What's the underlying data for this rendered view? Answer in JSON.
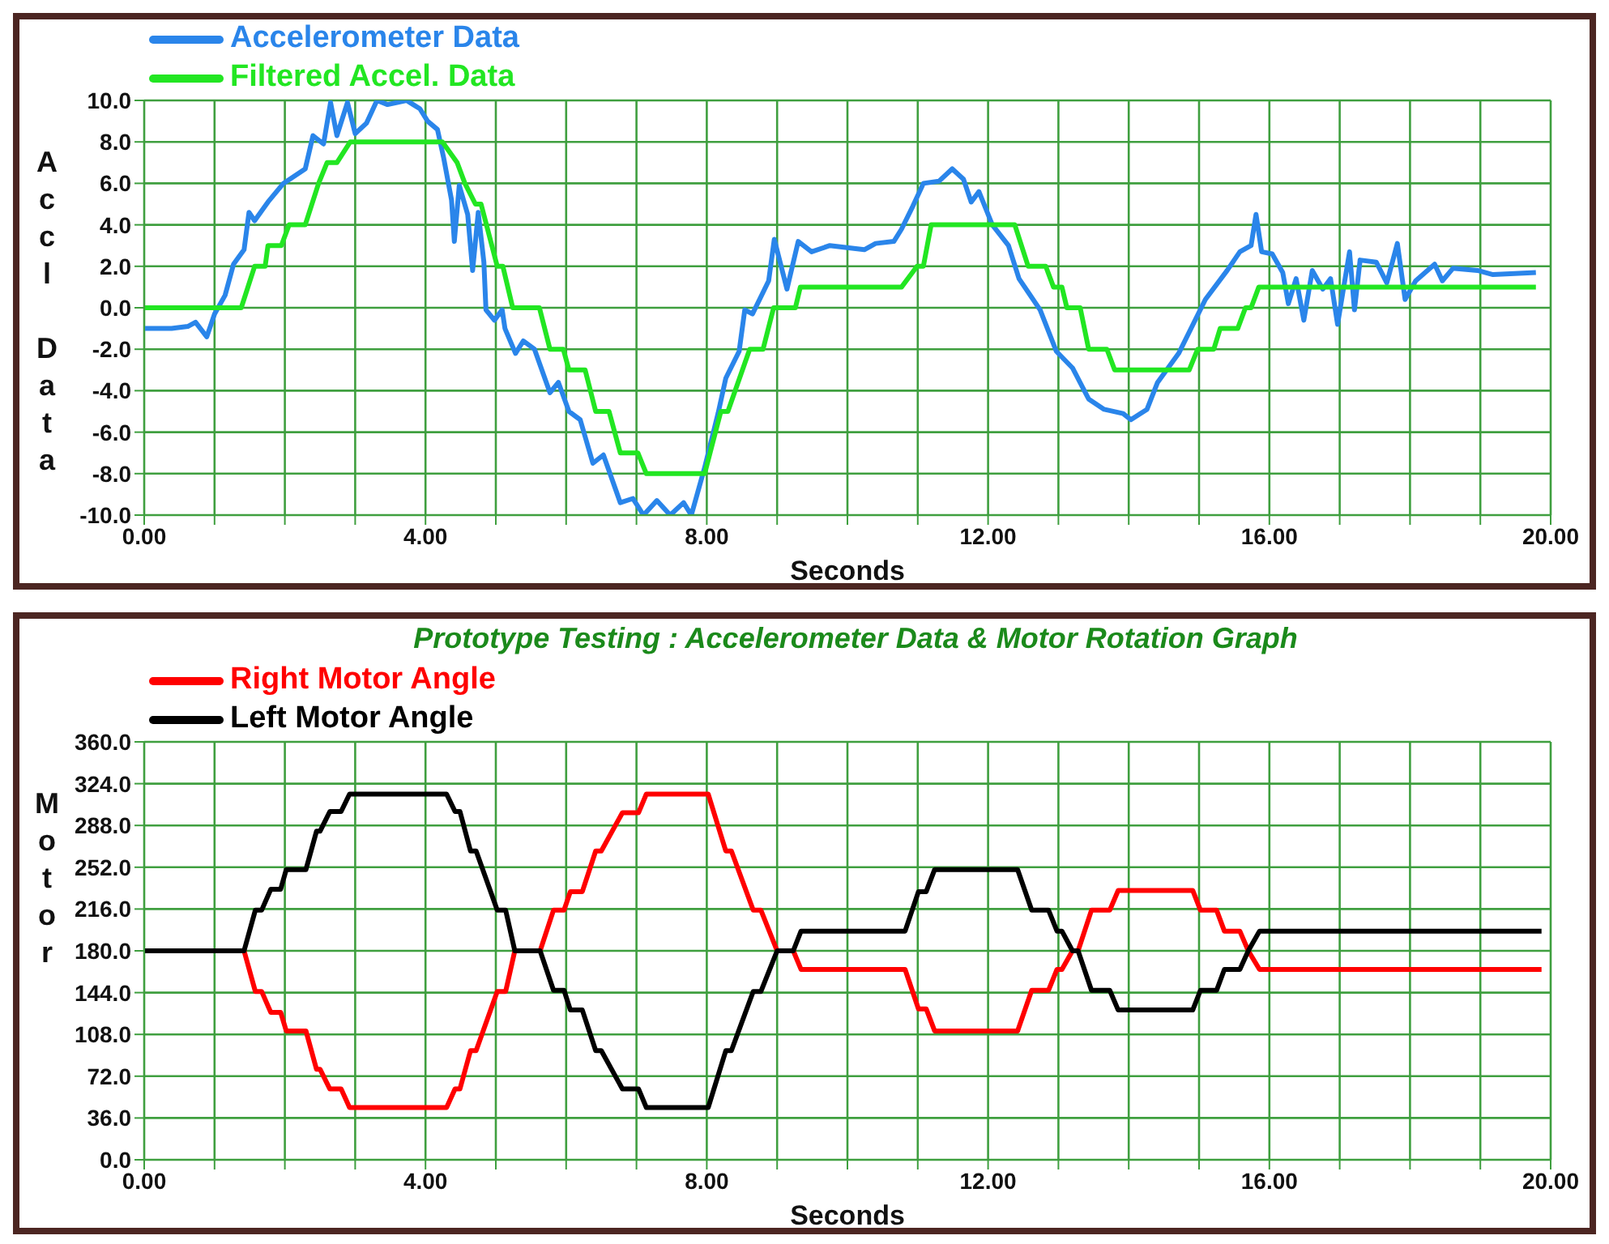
{
  "chart_data": [
    {
      "type": "line",
      "xlabel": "Seconds",
      "ylabel": "Accl Data",
      "legend": "top left",
      "grid": true,
      "xlim": [
        0,
        20
      ],
      "ylim": [
        -10,
        10
      ],
      "xticks": [
        {
          "value": 0,
          "label": "0.00"
        },
        {
          "value": 1,
          "label": null
        },
        {
          "value": 2,
          "label": null
        },
        {
          "value": 3,
          "label": null
        },
        {
          "value": 4,
          "label": "4.00"
        },
        {
          "value": 5,
          "label": null
        },
        {
          "value": 6,
          "label": null
        },
        {
          "value": 7,
          "label": null
        },
        {
          "value": 8,
          "label": "8.00"
        },
        {
          "value": 9,
          "label": null
        },
        {
          "value": 10,
          "label": null
        },
        {
          "value": 11,
          "label": null
        },
        {
          "value": 12,
          "label": "12.00"
        },
        {
          "value": 13,
          "label": null
        },
        {
          "value": 14,
          "label": null
        },
        {
          "value": 15,
          "label": null
        },
        {
          "value": 16,
          "label": "16.00"
        },
        {
          "value": 17,
          "label": null
        },
        {
          "value": 18,
          "label": null
        },
        {
          "value": 19,
          "label": null
        },
        {
          "value": 20,
          "label": "20.00"
        }
      ],
      "yticks": [
        {
          "value": -10,
          "label": "-10.0"
        },
        {
          "value": -8,
          "label": "-8.0"
        },
        {
          "value": -6,
          "label": "-6.0"
        },
        {
          "value": -4,
          "label": "-4.0"
        },
        {
          "value": -2,
          "label": "-2.0"
        },
        {
          "value": 0,
          "label": "0.0"
        },
        {
          "value": 2,
          "label": "2.0"
        },
        {
          "value": 4,
          "label": "4.0"
        },
        {
          "value": 6,
          "label": "6.0"
        },
        {
          "value": 8,
          "label": "8.0"
        },
        {
          "value": 10,
          "label": "10.0"
        }
      ],
      "series": [
        {
          "name": "Accelerometer Data",
          "color": "#2a85ea",
          "x": [
            0,
            0.39,
            0.62,
            0.73,
            0.89,
            1.0,
            1.15,
            1.27,
            1.42,
            1.49,
            1.57,
            1.76,
            1.98,
            2.29,
            2.4,
            2.55,
            2.65,
            2.74,
            2.89,
            3.0,
            3.16,
            3.31,
            3.46,
            3.73,
            3.92,
            4.03,
            4.17,
            4.26,
            4.37,
            4.41,
            4.48,
            4.6,
            4.67,
            4.75,
            4.83,
            4.86,
            4.98,
            5.09,
            5.13,
            5.28,
            5.39,
            5.55,
            5.77,
            5.89,
            6.04,
            6.2,
            6.38,
            6.53,
            6.77,
            6.95,
            7.1,
            7.29,
            7.48,
            7.67,
            7.78,
            7.97,
            8.16,
            8.27,
            8.46,
            8.54,
            8.65,
            8.88,
            8.96,
            9.14,
            9.3,
            9.49,
            9.75,
            10.24,
            10.4,
            10.66,
            10.77,
            10.93,
            11.08,
            11.3,
            11.49,
            11.65,
            11.76,
            11.87,
            12.06,
            12.29,
            12.44,
            12.74,
            12.97,
            13.2,
            13.43,
            13.65,
            13.92,
            14.03,
            14.26,
            14.41,
            14.71,
            15.09,
            15.4,
            15.58,
            15.74,
            15.81,
            15.89,
            16.04,
            16.19,
            16.27,
            16.38,
            16.49,
            16.61,
            16.76,
            16.87,
            16.97,
            17.14,
            17.21,
            17.29,
            17.52,
            17.67,
            17.82,
            17.93,
            18.08,
            18.35,
            18.46,
            18.61,
            18.96,
            19.18,
            19.79
          ],
          "values": [
            -1.0,
            -1.0,
            -0.9,
            -0.7,
            -1.4,
            -0.3,
            0.6,
            2.1,
            2.8,
            4.6,
            4.2,
            5.1,
            6.0,
            6.7,
            8.3,
            7.9,
            9.9,
            8.3,
            9.9,
            8.4,
            8.9,
            10.0,
            9.8,
            10.0,
            9.6,
            9.0,
            8.6,
            7.2,
            5.2,
            3.2,
            5.9,
            4.5,
            1.8,
            4.6,
            2.2,
            -0.1,
            -0.6,
            -0.1,
            -1.0,
            -2.2,
            -1.6,
            -2.0,
            -4.1,
            -3.6,
            -5.0,
            -5.4,
            -7.5,
            -7.1,
            -9.4,
            -9.2,
            -10.0,
            -9.3,
            -10.0,
            -9.4,
            -10.0,
            -7.7,
            -5.1,
            -3.4,
            -2.1,
            -0.1,
            -0.3,
            1.3,
            3.3,
            0.9,
            3.2,
            2.7,
            3.0,
            2.8,
            3.1,
            3.2,
            3.8,
            4.9,
            6.0,
            6.1,
            6.7,
            6.2,
            5.1,
            5.6,
            4.0,
            3.0,
            1.4,
            -0.1,
            -2.1,
            -2.9,
            -4.4,
            -4.9,
            -5.1,
            -5.4,
            -4.9,
            -3.6,
            -2.2,
            0.4,
            1.8,
            2.7,
            3.0,
            4.5,
            2.7,
            2.6,
            1.7,
            0.2,
            1.4,
            -0.6,
            1.8,
            0.9,
            1.4,
            -0.8,
            2.7,
            -0.1,
            2.3,
            2.2,
            1.2,
            3.1,
            0.4,
            1.3,
            2.1,
            1.3,
            1.9,
            1.8,
            1.6,
            1.7
          ]
        },
        {
          "name": "Filtered Accel. Data",
          "color": "#22e622",
          "x": [
            0,
            1.38,
            1.57,
            1.72,
            1.76,
            1.95,
            2.06,
            2.29,
            2.48,
            2.6,
            2.74,
            2.93,
            4.24,
            4.45,
            4.56,
            4.71,
            4.79,
            5.02,
            5.1,
            5.24,
            5.62,
            5.77,
            5.96,
            6.04,
            6.27,
            6.42,
            6.61,
            6.77,
            7.02,
            7.14,
            7.97,
            8.2,
            8.3,
            8.61,
            8.8,
            8.95,
            9.26,
            9.33,
            10.77,
            10.99,
            11.08,
            11.19,
            12.38,
            12.57,
            12.82,
            12.93,
            13.05,
            13.12,
            13.31,
            13.43,
            13.69,
            13.8,
            14.86,
            14.98,
            15.21,
            15.3,
            15.55,
            15.66,
            15.74,
            15.85,
            19.79
          ],
          "values": [
            0,
            0,
            2,
            2,
            3,
            3,
            4,
            4,
            6,
            7,
            7,
            8,
            8,
            7,
            6,
            5,
            5,
            2,
            2,
            0,
            0,
            -2,
            -2,
            -3,
            -3,
            -5,
            -5,
            -7,
            -7,
            -8,
            -8,
            -5,
            -5,
            -2,
            -2,
            0,
            0,
            1,
            1,
            2,
            2,
            4,
            4,
            2,
            2,
            1,
            1,
            0,
            0,
            -2,
            -2,
            -3,
            -3,
            -2,
            -2,
            -1,
            -1,
            0,
            0,
            1,
            1
          ]
        }
      ]
    },
    {
      "type": "line",
      "title": "Prototype Testing : Accelerometer Data & Motor Rotation Graph",
      "xlabel": "Seconds",
      "ylabel": "Motor",
      "legend": "top left",
      "grid": true,
      "xlim": [
        0,
        20
      ],
      "ylim": [
        0,
        360
      ],
      "xticks": [
        {
          "value": 0,
          "label": "0.00"
        },
        {
          "value": 1,
          "label": null
        },
        {
          "value": 2,
          "label": null
        },
        {
          "value": 3,
          "label": null
        },
        {
          "value": 4,
          "label": "4.00"
        },
        {
          "value": 5,
          "label": null
        },
        {
          "value": 6,
          "label": null
        },
        {
          "value": 7,
          "label": null
        },
        {
          "value": 8,
          "label": "8.00"
        },
        {
          "value": 9,
          "label": null
        },
        {
          "value": 10,
          "label": null
        },
        {
          "value": 11,
          "label": null
        },
        {
          "value": 12,
          "label": "12.00"
        },
        {
          "value": 13,
          "label": null
        },
        {
          "value": 14,
          "label": null
        },
        {
          "value": 15,
          "label": null
        },
        {
          "value": 16,
          "label": "16.00"
        },
        {
          "value": 17,
          "label": null
        },
        {
          "value": 18,
          "label": null
        },
        {
          "value": 19,
          "label": null
        },
        {
          "value": 20,
          "label": "20.00"
        }
      ],
      "yticks": [
        {
          "value": 0,
          "label": "0.0"
        },
        {
          "value": 36,
          "label": "36.0"
        },
        {
          "value": 72,
          "label": "72.0"
        },
        {
          "value": 108,
          "label": "108.0"
        },
        {
          "value": 144,
          "label": "144.0"
        },
        {
          "value": 180,
          "label": "180.0"
        },
        {
          "value": 216,
          "label": "216.0"
        },
        {
          "value": 252,
          "label": "252.0"
        },
        {
          "value": 288,
          "label": "288.0"
        },
        {
          "value": 324,
          "label": "324.0"
        },
        {
          "value": 360,
          "label": "360.0"
        }
      ],
      "series": [
        {
          "name": "Right Motor Angle",
          "color": "#ff0000",
          "x": [
            0,
            1.42,
            1.58,
            1.67,
            1.8,
            1.94,
            2.02,
            2.3,
            2.45,
            2.5,
            2.64,
            2.8,
            2.92,
            4.3,
            4.42,
            4.49,
            4.64,
            4.72,
            5.02,
            5.14,
            5.27,
            5.63,
            5.82,
            5.97,
            6.06,
            6.23,
            6.42,
            6.5,
            6.8,
            7.03,
            7.14,
            8.02,
            8.27,
            8.35,
            8.66,
            8.77,
            9.0,
            9.23,
            9.34,
            10.82,
            11.01,
            11.12,
            11.24,
            12.42,
            12.62,
            12.86,
            12.98,
            13.05,
            13.2,
            13.28,
            13.47,
            13.73,
            13.85,
            14.91,
            15.02,
            15.25,
            15.36,
            15.58,
            15.7,
            15.86,
            19.87
          ],
          "values": [
            180,
            180,
            145,
            145,
            127,
            127,
            111,
            111,
            78,
            78,
            61,
            61,
            45,
            45,
            61,
            61,
            94,
            94,
            145,
            145,
            180,
            180,
            215,
            215,
            231,
            231,
            266,
            266,
            299,
            299,
            315,
            315,
            266,
            266,
            215,
            215,
            180,
            180,
            164,
            164,
            130,
            130,
            111,
            111,
            146,
            146,
            164,
            164,
            180,
            180,
            215,
            215,
            232,
            232,
            215,
            215,
            197,
            197,
            180,
            164,
            164
          ]
        },
        {
          "name": "Left Motor Angle",
          "color": "#000000",
          "x": [
            0,
            1.42,
            1.58,
            1.67,
            1.8,
            1.94,
            2.02,
            2.3,
            2.45,
            2.5,
            2.64,
            2.8,
            2.92,
            4.3,
            4.42,
            4.49,
            4.64,
            4.72,
            5.02,
            5.14,
            5.27,
            5.63,
            5.82,
            5.97,
            6.06,
            6.23,
            6.42,
            6.5,
            6.8,
            7.03,
            7.14,
            8.02,
            8.27,
            8.35,
            8.66,
            8.77,
            9.0,
            9.23,
            9.34,
            10.82,
            11.01,
            11.12,
            11.24,
            12.42,
            12.62,
            12.86,
            12.98,
            13.05,
            13.2,
            13.28,
            13.47,
            13.73,
            13.85,
            14.91,
            15.02,
            15.25,
            15.36,
            15.58,
            15.7,
            15.86,
            19.87
          ],
          "values": [
            180,
            180,
            215,
            215,
            233,
            233,
            250,
            250,
            283,
            283,
            300,
            300,
            315,
            315,
            300,
            300,
            266,
            266,
            215,
            215,
            180,
            180,
            146,
            146,
            129,
            129,
            94,
            94,
            61,
            61,
            45,
            45,
            94,
            94,
            145,
            145,
            180,
            180,
            197,
            197,
            231,
            231,
            250,
            250,
            215,
            215,
            197,
            197,
            180,
            180,
            146,
            146,
            129,
            129,
            146,
            146,
            164,
            164,
            180,
            197,
            197
          ]
        }
      ]
    }
  ]
}
